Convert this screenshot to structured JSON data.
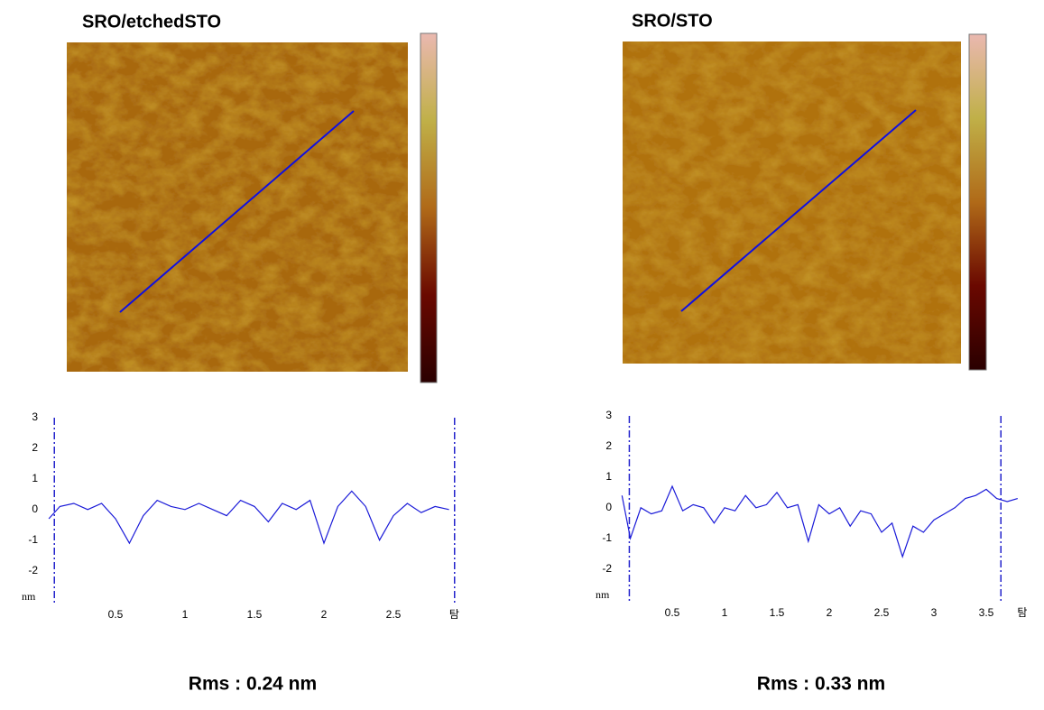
{
  "chart_data": [
    {
      "type": "line",
      "title": "SRO/etchedSTO",
      "annotation": "Rms : 0.24 nm",
      "ylabel": "nm",
      "xlabel": "탐",
      "x": [
        0.02,
        0.1,
        0.2,
        0.3,
        0.4,
        0.5,
        0.6,
        0.7,
        0.8,
        0.9,
        1.0,
        1.1,
        1.2,
        1.3,
        1.4,
        1.5,
        1.6,
        1.7,
        1.8,
        1.9,
        2.0,
        2.1,
        2.2,
        2.3,
        2.4,
        2.5,
        2.6,
        2.7,
        2.8,
        2.9
      ],
      "series": [
        {
          "color": "#1a1ad8",
          "values": [
            -0.3,
            0.1,
            0.2,
            0,
            0.2,
            -0.3,
            -1.1,
            -0.2,
            0.3,
            0.1,
            0,
            0.2,
            0,
            -0.2,
            0.3,
            0.1,
            -0.4,
            0.2,
            0,
            0.3,
            -1.1,
            0.1,
            0.6,
            0.1,
            -1.0,
            -0.2,
            0.2,
            -0.1,
            0.1,
            0
          ]
        }
      ],
      "cursors": [
        0.06,
        2.94
      ],
      "cursor_color": "#2222cc",
      "xlim": [
        0,
        2.98
      ],
      "ylim": [
        -3.1,
        3
      ],
      "xticks": [
        0.5,
        1,
        1.5,
        2,
        2.5
      ],
      "yticks": [
        -2,
        -1,
        0,
        1,
        2,
        3
      ]
    },
    {
      "type": "line",
      "title": "SRO/STO",
      "annotation": "Rms : 0.33 nm",
      "ylabel": "nm",
      "xlabel": "탐",
      "x": [
        0.02,
        0.1,
        0.2,
        0.3,
        0.4,
        0.5,
        0.6,
        0.7,
        0.8,
        0.9,
        1.0,
        1.1,
        1.2,
        1.3,
        1.4,
        1.5,
        1.6,
        1.7,
        1.8,
        1.9,
        2.0,
        2.1,
        2.2,
        2.3,
        2.4,
        2.5,
        2.6,
        2.7,
        2.8,
        2.9,
        3.0,
        3.1,
        3.2,
        3.3,
        3.4,
        3.5,
        3.6,
        3.7,
        3.8
      ],
      "series": [
        {
          "color": "#1a1ad8",
          "values": [
            0.4,
            -1.0,
            0,
            -0.2,
            -0.1,
            0.7,
            -0.1,
            0.1,
            0,
            -0.5,
            0,
            -0.1,
            0.4,
            0,
            0.1,
            0.5,
            0,
            0.1,
            -1.1,
            0.1,
            -0.2,
            0,
            -0.6,
            -0.1,
            -0.2,
            -0.8,
            -0.5,
            -1.6,
            -0.6,
            -0.8,
            -0.4,
            -0.2,
            0,
            0.3,
            0.4,
            0.6,
            0.3,
            0.2,
            0.3
          ]
        }
      ],
      "cursors": [
        0.09,
        3.64
      ],
      "cursor_color": "#2222cc",
      "xlim": [
        0,
        3.9
      ],
      "ylim": [
        -3.1,
        3
      ],
      "xticks": [
        0.5,
        1,
        1.5,
        2,
        2.5,
        3,
        3.5
      ],
      "yticks": [
        -2,
        -1,
        0,
        1,
        2,
        3
      ]
    }
  ]
}
